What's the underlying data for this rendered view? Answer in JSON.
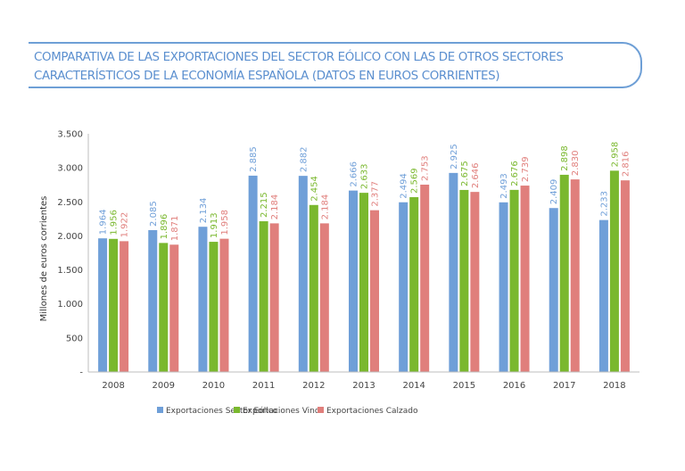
{
  "chart_data": {
    "type": "bar",
    "title_lines": [
      "COMPARATIVA DE LAS EXPORTACIONES DEL SECTOR EÓLICO CON LAS DE OTROS SECTORES",
      "CARACTERÍSTICOS DE LA ECONOMÍA ESPAÑOLA (DATOS EN EUROS CORRIENTES)"
    ],
    "xlabel": "",
    "ylabel": "Millones de euros corrientes",
    "ylim": [
      0,
      3500
    ],
    "yticks": [
      0,
      500,
      1000,
      1500,
      2000,
      2500,
      3000,
      3500
    ],
    "ytick_labels": [
      "-",
      "500",
      "1.000",
      "1.500",
      "2.000",
      "2.500",
      "3.000",
      "3.500"
    ],
    "grid": false,
    "legend_position": "bottom",
    "categories": [
      "2008",
      "2009",
      "2010",
      "2011",
      "2012",
      "2013",
      "2014",
      "2015",
      "2016",
      "2017",
      "2018"
    ],
    "series": [
      {
        "name": "Exportaciones Sector Eólico",
        "color": "#6f9fd8",
        "label_color": "#6f9fd8",
        "values": [
          1964,
          2085,
          2134,
          2885,
          2882,
          2666,
          2494,
          2925,
          2493,
          2409,
          2233
        ],
        "labels": [
          "1.964",
          "2.085",
          "2.134",
          "2.885",
          "2.882",
          "2.666",
          "2.494",
          "2.925",
          "2.493",
          "2.409",
          "2.233"
        ]
      },
      {
        "name": "Exportaciones Vino",
        "color": "#7ab82e",
        "label_color": "#7ab82e",
        "values": [
          1956,
          1896,
          1913,
          2215,
          2454,
          2633,
          2569,
          2675,
          2676,
          2898,
          2958
        ],
        "labels": [
          "1.956",
          "1.896",
          "1.913",
          "2.215",
          "2.454",
          "2.633",
          "2.569",
          "2.675",
          "2.676",
          "2.898",
          "2.958"
        ]
      },
      {
        "name": "Exportaciones Calzado",
        "color": "#e07f7c",
        "label_color": "#e07f7c",
        "values": [
          1922,
          1871,
          1958,
          2184,
          2184,
          2377,
          2753,
          2646,
          2739,
          2830,
          2816
        ],
        "labels": [
          "1.922",
          "1.871",
          "1.958",
          "2.184",
          "2.184",
          "2.377",
          "2.753",
          "2.646",
          "2.739",
          "2.830",
          "2.816"
        ]
      }
    ]
  }
}
